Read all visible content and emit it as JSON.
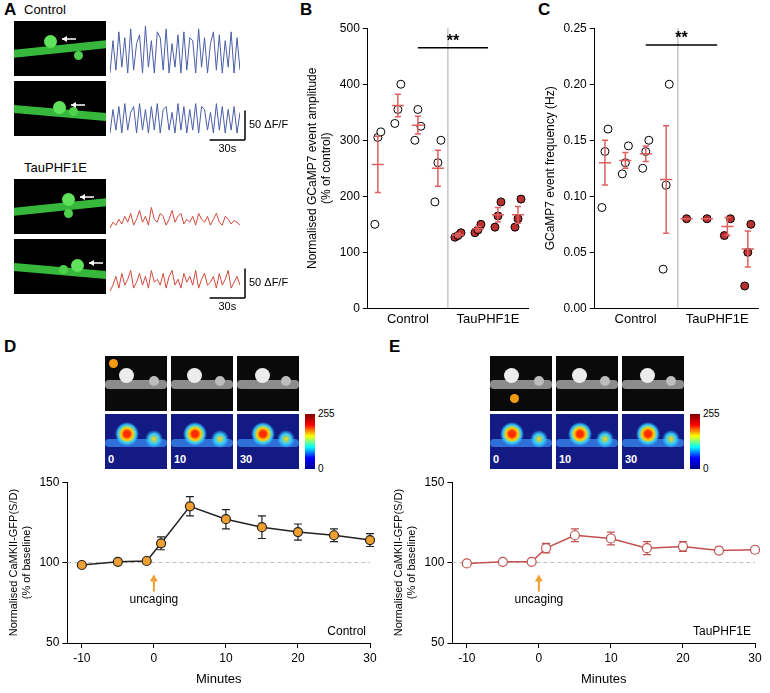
{
  "chart_data": [
    {
      "panel": "A",
      "type": "line",
      "tick_labels": false,
      "groups": [
        "Control",
        "TauPHF1E"
      ],
      "x": [
        0,
        2.5,
        5,
        7.5,
        10,
        12.5,
        15,
        17.5,
        20,
        22.5,
        25,
        27.5,
        30,
        32.5,
        35,
        37.5,
        40,
        42.5,
        45,
        47.5,
        50,
        52.5,
        55,
        57.5,
        60,
        62.5,
        65,
        67.5,
        70,
        72.5,
        75,
        77.5,
        80,
        82.5,
        85,
        87.5,
        90,
        92.5,
        95,
        97.5,
        100,
        102.5,
        105,
        107.5,
        110
      ],
      "xlim": [
        0,
        110
      ],
      "ylim": [
        -5,
        85
      ],
      "series": [
        {
          "group": "Control",
          "color": "#4a5ea8",
          "values": [
            0,
            55,
            5,
            70,
            10,
            60,
            0,
            75,
            5,
            50,
            65,
            0,
            80,
            10,
            55,
            0,
            70,
            60,
            5,
            75,
            0,
            50,
            10,
            65,
            0,
            70,
            5,
            60,
            55,
            0,
            75,
            10,
            60,
            0,
            50,
            70,
            5,
            65,
            0,
            55,
            10,
            70,
            0,
            60,
            5
          ]
        },
        {
          "group": "Control",
          "color": "#4a5ea8",
          "values": [
            0,
            40,
            5,
            45,
            0,
            50,
            5,
            35,
            45,
            0,
            50,
            5,
            40,
            0,
            45,
            5,
            50,
            0,
            40,
            45,
            5,
            35,
            0,
            50,
            5,
            45,
            0,
            40,
            5,
            50,
            0,
            45,
            40,
            5,
            35,
            0,
            50,
            5,
            45,
            0,
            40,
            5,
            45,
            0,
            35
          ]
        },
        {
          "group": "TauPHF1E",
          "color": "#d04a3c",
          "values": [
            5,
            15,
            10,
            20,
            12,
            25,
            15,
            30,
            10,
            20,
            35,
            15,
            25,
            10,
            40,
            20,
            15,
            30,
            25,
            10,
            20,
            35,
            15,
            25,
            30,
            12,
            20,
            15,
            25,
            10,
            30,
            20,
            15,
            25,
            10,
            20,
            30,
            15,
            10,
            25,
            20,
            12,
            18,
            15,
            10
          ]
        },
        {
          "group": "TauPHF1E",
          "color": "#d04a3c",
          "values": [
            0,
            10,
            25,
            5,
            30,
            10,
            20,
            35,
            5,
            15,
            30,
            10,
            25,
            5,
            35,
            15,
            20,
            10,
            30,
            5,
            25,
            35,
            10,
            20,
            5,
            30,
            15,
            25,
            10,
            35,
            5,
            20,
            30,
            10,
            15,
            25,
            5,
            30,
            10,
            20,
            35,
            5,
            15,
            25,
            10
          ]
        }
      ],
      "scale_bars": [
        {
          "axis": "y",
          "value": 50,
          "label": "50 ΔF/F"
        },
        {
          "axis": "x",
          "value": 30,
          "label": "30s"
        }
      ]
    },
    {
      "panel": "B",
      "type": "scatter",
      "grid": false,
      "y_label": "Normalised GCaMP7 event amplitude (% of control)",
      "xlim": [
        0.5,
        8.5
      ],
      "xticks": [
        {
          "value": 2.5,
          "label": "Control"
        },
        {
          "value": 6.5,
          "label": "TauPHF1E"
        }
      ],
      "ylim": [
        0,
        500
      ],
      "yticks": [
        0,
        100,
        200,
        300,
        400,
        500
      ],
      "series": [
        {
          "color": "#000000",
          "marker": "open_circle",
          "x": [
            0.85,
            1,
            1.15,
            1.85,
            2,
            2.15,
            2.85,
            3,
            3.15,
            3.85,
            4,
            4.15
          ],
          "values": [
            150,
            305,
            315,
            330,
            355,
            400,
            300,
            355,
            325,
            190,
            260,
            300
          ]
        },
        {
          "color": "#b8312f",
          "marker": "circle",
          "x": [
            4.85,
            5,
            5.15,
            5.85,
            6,
            6.15,
            6.85,
            7,
            7.15,
            7.85,
            8,
            8.15
          ],
          "values": [
            127,
            130,
            135,
            135,
            140,
            150,
            145,
            165,
            190,
            145,
            160,
            195
          ]
        }
      ],
      "means": {
        "color": "#e06060",
        "x": [
          1,
          2,
          3,
          4,
          5,
          6,
          7,
          8
        ],
        "values": [
          257,
          362,
          327,
          250,
          131,
          142,
          167,
          167
        ],
        "errors": [
          50,
          20,
          16,
          32,
          3,
          4,
          13,
          15
        ]
      },
      "significance": {
        "text": "**",
        "x": [
          3,
          6.5
        ],
        "y": 465
      }
    },
    {
      "panel": "C",
      "type": "scatter",
      "grid": false,
      "y_label": "GCaMP7 event frequency (Hz)",
      "xlim": [
        0.5,
        8.5
      ],
      "xticks": [
        {
          "value": 2.5,
          "label": "Control"
        },
        {
          "value": 6.5,
          "label": "TauPHF1E"
        }
      ],
      "ylim": [
        0,
        0.25
      ],
      "yticks": [
        {
          "value": 0,
          "label": "0.00"
        },
        {
          "value": 0.05,
          "label": "0.05"
        },
        {
          "value": 0.1,
          "label": "0.10"
        },
        {
          "value": 0.15,
          "label": "0.15"
        },
        {
          "value": 0.2,
          "label": "0.20"
        },
        {
          "value": 0.25,
          "label": "0.25"
        }
      ],
      "series": [
        {
          "color": "#000000",
          "marker": "open_circle",
          "x": [
            0.85,
            1,
            1.15,
            1.85,
            2,
            2.15,
            2.85,
            3,
            3.15,
            3.85,
            4,
            4.15
          ],
          "values": [
            0.09,
            0.14,
            0.16,
            0.12,
            0.13,
            0.145,
            0.125,
            0.14,
            0.15,
            0.035,
            0.11,
            0.2
          ]
        },
        {
          "color": "#b8312f",
          "marker": "circle",
          "x": [
            5,
            6,
            6.85,
            7.15,
            7.85,
            8,
            8.15
          ],
          "values": [
            0.08,
            0.08,
            0.065,
            0.08,
            0.02,
            0.05,
            0.075
          ]
        }
      ],
      "means": {
        "color": "#e06060",
        "x": [
          1,
          2,
          3,
          4,
          5,
          6,
          7,
          8
        ],
        "values": [
          0.13,
          0.132,
          0.138,
          0.115,
          0.08,
          0.08,
          0.073,
          0.053
        ],
        "errors": [
          0.02,
          0.007,
          0.007,
          0.048,
          0,
          0,
          0.008,
          0.016
        ]
      },
      "significance": {
        "text": "**",
        "x": [
          3,
          6.5
        ],
        "y": 0.235
      }
    },
    {
      "panel": "D",
      "type": "line",
      "grid": false,
      "label": "Control",
      "y_label": "Normalised CaMKII-GFP(S/D) (% of baseline)",
      "x_label": "Minutes",
      "x": [
        -10,
        -5,
        -1,
        1,
        5,
        10,
        15,
        20,
        25,
        30
      ],
      "xlim": [
        -12,
        30
      ],
      "xticks": [
        -10,
        0,
        10,
        20,
        30
      ],
      "ylim": [
        50,
        150
      ],
      "yticks": [
        50,
        100,
        150
      ],
      "series": [
        {
          "color": "#f0a030",
          "marker": "circle",
          "values": [
            98.5,
            100.5,
            101,
            112,
            135,
            127,
            122,
            119,
            117,
            114
          ],
          "errors": [
            0.5,
            0.5,
            0.5,
            4,
            6,
            6,
            7,
            5,
            4,
            4
          ]
        }
      ],
      "reference_line": 100,
      "annotations": [
        {
          "text": "uncaging",
          "x": 0,
          "y": 77
        }
      ],
      "image_times": [
        0,
        10,
        30
      ],
      "colorbar": {
        "range": [
          0,
          255
        ],
        "ticks": [
          0,
          255
        ]
      }
    },
    {
      "panel": "E",
      "type": "line",
      "grid": false,
      "label": "TauPHF1E",
      "y_label": "Normalised CaMKII-GFP(S/D) (% of baseline)",
      "x_label": "Minutes",
      "x": [
        -10,
        -5,
        -1,
        1,
        5,
        10,
        15,
        20,
        25,
        30
      ],
      "xlim": [
        -12,
        30
      ],
      "xticks": [
        -10,
        0,
        10,
        20,
        30
      ],
      "ylim": [
        50,
        150
      ],
      "yticks": [
        50,
        100,
        150
      ],
      "series": [
        {
          "color": "#c0504d",
          "marker": "open_circle",
          "values": [
            99.5,
            100.5,
            100.5,
            109,
            117,
            115,
            109,
            110,
            107.5,
            108
          ],
          "errors": [
            0.5,
            0.5,
            0.5,
            3,
            4,
            4,
            4,
            3,
            2,
            2
          ]
        }
      ],
      "reference_line": 100,
      "annotations": [
        {
          "text": "uncaging",
          "x": 0,
          "y": 77
        }
      ],
      "image_times": [
        0,
        10,
        30
      ],
      "colorbar": {
        "range": [
          0,
          255
        ],
        "ticks": [
          0,
          255
        ]
      }
    }
  ]
}
